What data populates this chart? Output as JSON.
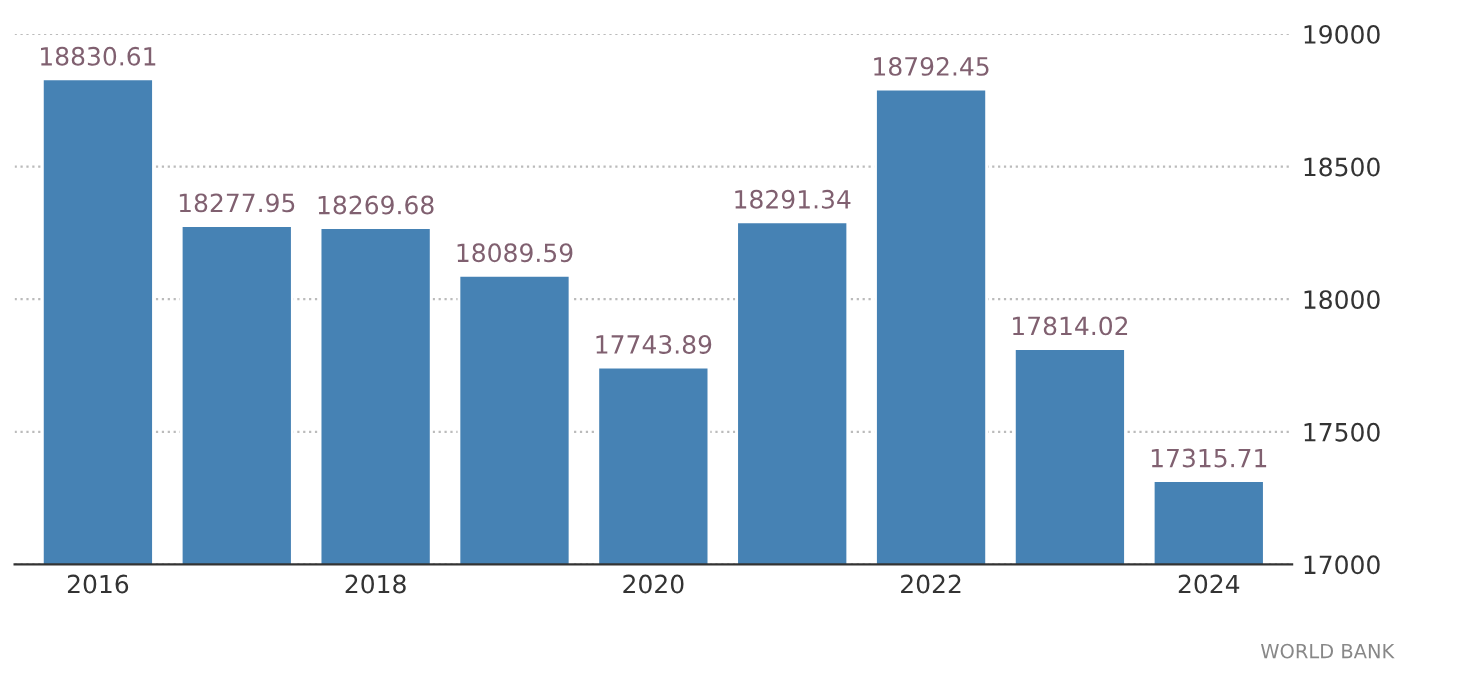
{
  "chart_data": {
    "type": "bar",
    "categories": [
      "2016",
      null,
      "2018",
      null,
      "2020",
      null,
      "2022",
      null,
      "2024"
    ],
    "values": [
      18830.61,
      18277.95,
      18269.68,
      18089.59,
      17743.89,
      18291.34,
      18792.45,
      17814.02,
      17315.71
    ],
    "color": "#4682b4",
    "ylim": [
      17000,
      19000
    ],
    "yticks": [
      17000,
      17500,
      18000,
      18500,
      19000
    ],
    "grid": "y",
    "data_labels": true,
    "annotations": [
      "WORLD BANK"
    ]
  }
}
